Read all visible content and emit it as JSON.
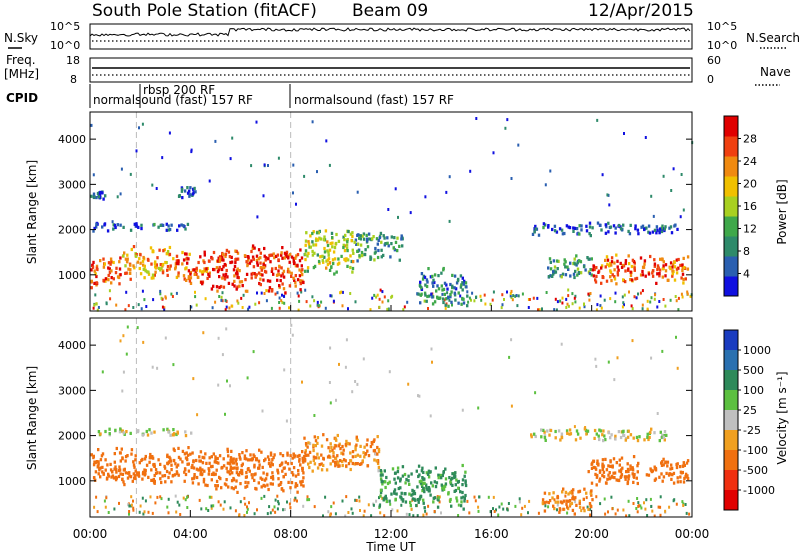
{
  "header": {
    "title": "South Pole Station (fitACF)",
    "beam": "Beam 09",
    "date": "12/Apr/2015"
  },
  "aux_panels": {
    "nsky_label": "N.Sky",
    "nsearch_label": "N.Search",
    "nsky_ticks": [
      "10^5",
      "10^0"
    ],
    "nsearch_ticks": [
      "10^5",
      "10^0"
    ],
    "freq_label_line1": "Freq.",
    "freq_label_line2": "[MHz]",
    "freq_ticks": [
      "18",
      "8"
    ],
    "nave_label": "Nave",
    "nave_ticks": [
      "60",
      "0"
    ],
    "cpid_label": "CPID",
    "cpid_segments": [
      "normalsound (fast) 157 RF",
      "rbsp 200 RF",
      "normalsound (fast) 157 RF"
    ]
  },
  "chart_data": [
    {
      "type": "heatmap",
      "name": "power",
      "ylabel": "Slant Range [km]",
      "yticks": [
        "1000",
        "2000",
        "3000",
        "4000"
      ],
      "ylim": [
        200,
        4600
      ],
      "xlim": [
        0,
        24
      ],
      "colorbar_label": "Power [dB]",
      "colorbar_ticks": [
        "4",
        "8",
        "12",
        "16",
        "20",
        "24",
        "28"
      ],
      "colorbar_range": [
        0,
        32
      ],
      "colors": [
        "#1010e0",
        "#2a5fb0",
        "#2e8a6a",
        "#3fa84a",
        "#a8d020",
        "#f0c000",
        "#f08a10",
        "#f04010",
        "#e00000"
      ],
      "blobs": [
        {
          "t0": 0.0,
          "t1": 1.2,
          "r0": 700,
          "r1": 1500,
          "level": 26
        },
        {
          "t0": 1.2,
          "t1": 3.2,
          "r0": 900,
          "r1": 1700,
          "level": 22
        },
        {
          "t0": 3.2,
          "t1": 4.8,
          "r0": 800,
          "r1": 1600,
          "level": 26
        },
        {
          "t0": 4.8,
          "t1": 8.5,
          "r0": 600,
          "r1": 1700,
          "level": 28
        },
        {
          "t0": 8.5,
          "t1": 10.5,
          "r0": 1000,
          "r1": 2100,
          "level": 16
        },
        {
          "t0": 10.5,
          "t1": 12.5,
          "r0": 1300,
          "r1": 2000,
          "level": 10
        },
        {
          "t0": 13.0,
          "t1": 15.0,
          "r0": 300,
          "r1": 1200,
          "level": 8
        },
        {
          "t0": 18.2,
          "t1": 20.0,
          "r0": 900,
          "r1": 1500,
          "level": 10
        },
        {
          "t0": 20.0,
          "t1": 23.8,
          "r0": 800,
          "r1": 1500,
          "level": 26
        },
        {
          "t0": 0.0,
          "t1": 4.0,
          "r0": 2000,
          "r1": 2200,
          "level": 5
        },
        {
          "t0": 17.5,
          "t1": 23.5,
          "r0": 1900,
          "r1": 2200,
          "level": 5
        },
        {
          "t0": 0.0,
          "t1": 0.6,
          "r0": 2700,
          "r1": 2900,
          "level": 5
        },
        {
          "t0": 3.5,
          "t1": 4.2,
          "r0": 2700,
          "r1": 3000,
          "level": 5
        }
      ]
    },
    {
      "type": "heatmap",
      "name": "velocity",
      "ylabel": "Slant Range [km]",
      "yticks": [
        "1000",
        "2000",
        "3000",
        "4000"
      ],
      "ylim": [
        200,
        4600
      ],
      "xlim": [
        0,
        24
      ],
      "xticks": [
        "00:00",
        "04:00",
        "08:00",
        "12:00",
        "16:00",
        "20:00",
        "00:00"
      ],
      "xlabel": "Time UT",
      "colorbar_label": "Velocity [m s⁻¹]",
      "colorbar_ticks": [
        "1000",
        "500",
        "100",
        "25",
        "-25",
        "-100",
        "-500",
        "-1000"
      ],
      "colors": [
        "#1a3cc0",
        "#2a70b0",
        "#2e8a5a",
        "#5cc040",
        "#c0c0c0",
        "#f0a020",
        "#f07010",
        "#f03010",
        "#e00000"
      ],
      "blobs": [
        {
          "t0": 0.0,
          "t1": 4.8,
          "r0": 900,
          "r1": 1800,
          "level": -200
        },
        {
          "t0": 4.8,
          "t1": 8.5,
          "r0": 700,
          "r1": 1800,
          "level": -250
        },
        {
          "t0": 8.5,
          "t1": 11.5,
          "r0": 1200,
          "r1": 2100,
          "level": -120
        },
        {
          "t0": 11.5,
          "t1": 15.0,
          "r0": 400,
          "r1": 1400,
          "level": 150
        },
        {
          "t0": 19.8,
          "t1": 23.8,
          "r0": 900,
          "r1": 1600,
          "level": -300
        },
        {
          "t0": 18.0,
          "t1": 20.0,
          "r0": 300,
          "r1": 900,
          "level": -150
        },
        {
          "t0": 0.0,
          "t1": 4.0,
          "r0": 2000,
          "r1": 2200,
          "level": 0
        },
        {
          "t0": 17.5,
          "t1": 23.0,
          "r0": 1900,
          "r1": 2200,
          "level": 0
        }
      ]
    }
  ]
}
